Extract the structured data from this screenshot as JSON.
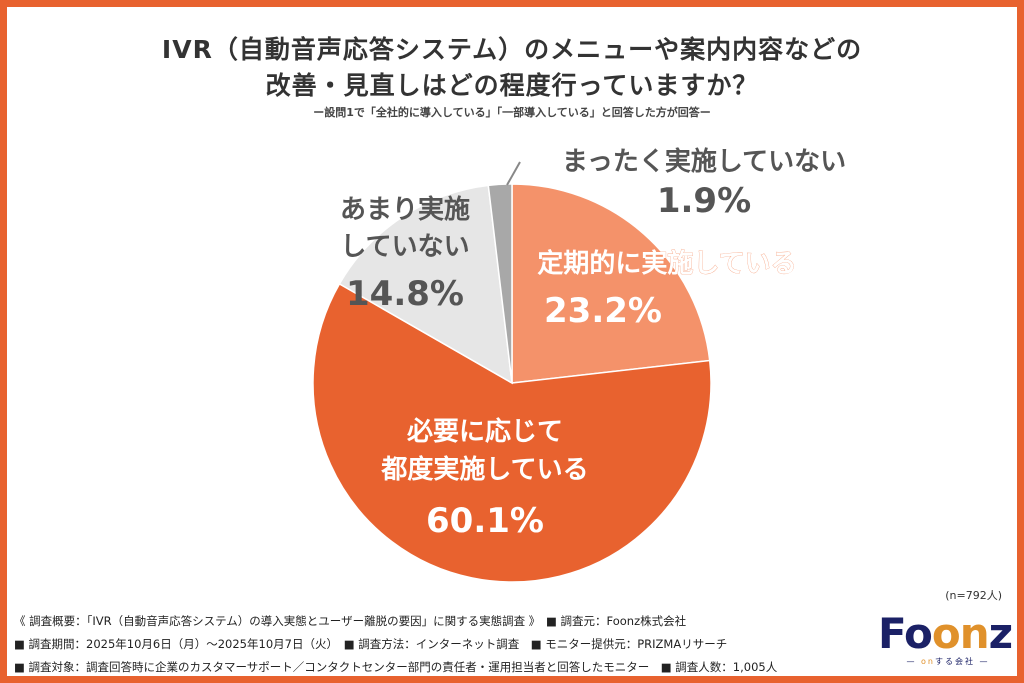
{
  "title_line1": "IVR（自動音声応答システム）のメニューや案内内容などの",
  "title_line2": "改善・見直しはどの程度行っていますか？",
  "subtitle": "ー設問1で「全社的に導入している」「一部導入している」と回答した方が回答ー",
  "sample_size": "(n=792人)",
  "chart_data": {
    "type": "pie",
    "start": "top",
    "direction": "clockwise",
    "slices": [
      {
        "label": "定期的に実施している",
        "label_lines": [
          "定期的に実施している"
        ],
        "value": 23.2,
        "value_label": "23.2%",
        "color": "#F4926A",
        "text_color": "#ffffff"
      },
      {
        "label": "必要に応じて都度実施している",
        "label_lines": [
          "必要に応じて",
          "都度実施している"
        ],
        "value": 60.1,
        "value_label": "60.1%",
        "color": "#E8622F",
        "text_color": "#ffffff"
      },
      {
        "label": "あまり実施していない",
        "label_lines": [
          "あまり実施",
          "していない"
        ],
        "value": 14.8,
        "value_label": "14.8%",
        "color": "#E6E6E6",
        "text_color": "#555555"
      },
      {
        "label": "まったく実施していない",
        "label_lines": [
          "まったく実施していない"
        ],
        "value": 1.9,
        "value_label": "1.9%",
        "color": "#A8A8A8",
        "text_color": "#555555"
      }
    ]
  },
  "footer": {
    "line1": "《 調査概要：「IVR（自動音声応答システム）の導入実態とユーザー離脱の要因」に関する実態調査 》　■ 調査元：Foonz株式会社",
    "line2": "■ 調査期間：2025年10月6日（月）～2025年10月7日（火）　■ 調査方法：インターネット調査　■ モニター提供元：PRIZMAリサーチ",
    "line3": "■ 調査対象：調査回答時に企業のカスタマーサポート／コンタクトセンター部門の責任者・運用担当者と回答したモニター　■ 調査人数：1,005人"
  },
  "logo": {
    "text": "Foonz",
    "tagline": "— onする会社 —"
  },
  "colors": {
    "frame": "#E8622F",
    "logo_navy": "#1B2166",
    "logo_orange": "#E0912B"
  }
}
